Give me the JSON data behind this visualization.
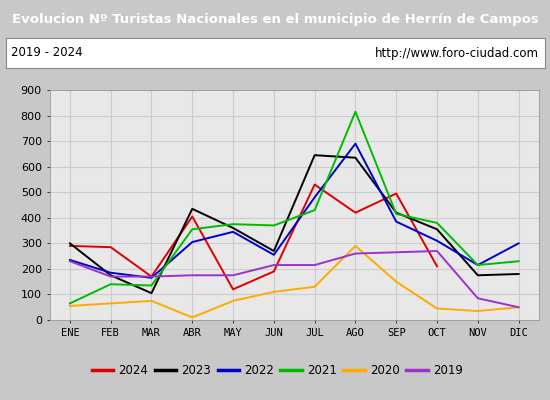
{
  "title": "Evolucion Nº Turistas Nacionales en el municipio de Herrín de Campos",
  "subtitle_left": "2019 - 2024",
  "subtitle_right": "http://www.foro-ciudad.com",
  "title_bg_color": "#4f7fc0",
  "title_text_color": "#ffffff",
  "months": [
    "ENE",
    "FEB",
    "MAR",
    "ABR",
    "MAY",
    "JUN",
    "JUL",
    "AGO",
    "SEP",
    "OCT",
    "NOV",
    "DIC"
  ],
  "ylim": [
    0,
    900
  ],
  "yticks": [
    0,
    100,
    200,
    300,
    400,
    500,
    600,
    700,
    800,
    900
  ],
  "series": {
    "2024": {
      "color": "#dd0000",
      "data": [
        290,
        285,
        170,
        405,
        120,
        190,
        530,
        420,
        495,
        210,
        null,
        null
      ]
    },
    "2023": {
      "color": "#000000",
      "data": [
        300,
        175,
        105,
        435,
        360,
        270,
        645,
        635,
        420,
        355,
        175,
        180
      ]
    },
    "2022": {
      "color": "#0000cc",
      "data": [
        235,
        185,
        165,
        305,
        345,
        255,
        480,
        690,
        385,
        310,
        215,
        300
      ]
    },
    "2021": {
      "color": "#00bb00",
      "data": [
        65,
        140,
        135,
        355,
        375,
        370,
        430,
        815,
        415,
        380,
        215,
        230
      ]
    },
    "2020": {
      "color": "#ffaa00",
      "data": [
        55,
        65,
        75,
        10,
        75,
        110,
        130,
        290,
        150,
        45,
        35,
        50
      ]
    },
    "2019": {
      "color": "#9933cc",
      "data": [
        230,
        170,
        170,
        175,
        175,
        215,
        215,
        260,
        265,
        270,
        85,
        50
      ]
    }
  },
  "legend_order": [
    "2024",
    "2023",
    "2022",
    "2021",
    "2020",
    "2019"
  ],
  "grid_color": "#cccccc",
  "figure_bg_color": "#c8c8c8",
  "plot_bg_color": "#e8e8e8",
  "outer_bg_color": "#e0e0e0"
}
